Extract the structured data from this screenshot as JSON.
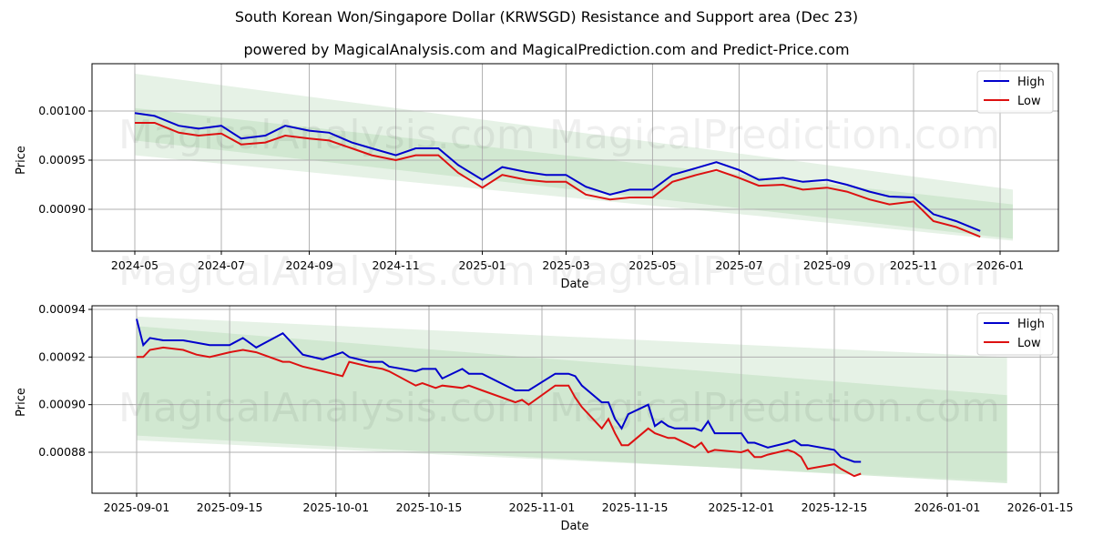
{
  "header": {
    "title": "South Korean Won/Singapore Dollar (KRWSGD) Resistance and Support area (Dec 23)",
    "subtitle": "powered by MagicalAnalysis.com and MagicalPrediction.com and Predict-Price.com"
  },
  "watermarks": [
    "MagicalAnalysis.com",
    "MagicalPrediction.com"
  ],
  "colors": {
    "high": "#0000cc",
    "low": "#dd1111",
    "band_outer": "#e3f1e3",
    "band_inner": "#c9e4c9",
    "grid": "#b0b0b0"
  },
  "chart_data": [
    {
      "type": "line",
      "title": "KRWSGD High/Low - long range",
      "xlabel": "Date",
      "ylabel": "Price",
      "x_ticks": [
        "2024-05",
        "2024-07",
        "2024-09",
        "2024-11",
        "2025-01",
        "2025-03",
        "2025-05",
        "2025-07",
        "2025-09",
        "2025-11",
        "2026-01"
      ],
      "y_ticks": [
        "0.00090",
        "0.00095",
        "0.00100"
      ],
      "ylim": [
        0.000868,
        0.001045
      ],
      "grid": true,
      "legend": {
        "position": "upper right",
        "entries": [
          "High",
          "Low"
        ]
      },
      "x": [
        "2024-05-01",
        "2024-05-15",
        "2024-06-01",
        "2024-06-15",
        "2024-07-01",
        "2024-07-15",
        "2024-08-01",
        "2024-08-15",
        "2024-09-01",
        "2024-09-15",
        "2024-10-01",
        "2024-10-15",
        "2024-11-01",
        "2024-11-15",
        "2024-12-01",
        "2024-12-15",
        "2025-01-01",
        "2025-01-15",
        "2025-02-01",
        "2025-02-15",
        "2025-03-01",
        "2025-03-15",
        "2025-04-01",
        "2025-04-15",
        "2025-05-01",
        "2025-05-15",
        "2025-06-01",
        "2025-06-15",
        "2025-07-01",
        "2025-07-15",
        "2025-08-01",
        "2025-08-15",
        "2025-09-01",
        "2025-09-15",
        "2025-10-01",
        "2025-10-15",
        "2025-11-01",
        "2025-11-15",
        "2025-12-01",
        "2025-12-18"
      ],
      "series": [
        {
          "name": "High",
          "color": "#0000cc",
          "values": [
            0.000998,
            0.000995,
            0.000985,
            0.000982,
            0.000985,
            0.000972,
            0.000975,
            0.000985,
            0.00098,
            0.000978,
            0.000968,
            0.000962,
            0.000955,
            0.000962,
            0.000962,
            0.000945,
            0.00093,
            0.000943,
            0.000938,
            0.000935,
            0.000935,
            0.000923,
            0.000915,
            0.00092,
            0.00092,
            0.000935,
            0.000942,
            0.000948,
            0.00094,
            0.00093,
            0.000932,
            0.000928,
            0.00093,
            0.000925,
            0.000918,
            0.000913,
            0.000912,
            0.000895,
            0.000888,
            0.000878
          ]
        },
        {
          "name": "Low",
          "color": "#dd1111",
          "values": [
            0.000988,
            0.000988,
            0.000978,
            0.000975,
            0.000977,
            0.000966,
            0.000968,
            0.000975,
            0.000972,
            0.00097,
            0.000962,
            0.000955,
            0.00095,
            0.000955,
            0.000955,
            0.000937,
            0.000922,
            0.000935,
            0.00093,
            0.000928,
            0.000928,
            0.000915,
            0.00091,
            0.000912,
            0.000912,
            0.000928,
            0.000935,
            0.00094,
            0.000932,
            0.000924,
            0.000925,
            0.00092,
            0.000922,
            0.000918,
            0.00091,
            0.000905,
            0.000908,
            0.000888,
            0.000882,
            0.000872
          ]
        }
      ],
      "bands": [
        {
          "name": "outer",
          "x_start": "2024-05-01",
          "x_end": "2026-01-10",
          "upper": [
            0.001038,
            0.00092
          ],
          "lower": [
            0.000955,
            0.000868
          ]
        },
        {
          "name": "inner",
          "x_start": "2024-05-01",
          "x_end": "2026-01-10",
          "upper": [
            0.001003,
            0.000905
          ],
          "lower": [
            0.00097,
            0.00087
          ]
        }
      ]
    },
    {
      "type": "line",
      "title": "KRWSGD High/Low - recent",
      "xlabel": "Date",
      "ylabel": "Price",
      "x_ticks": [
        "2025-09-01",
        "2025-09-15",
        "2025-10-01",
        "2025-10-15",
        "2025-11-01",
        "2025-11-15",
        "2025-12-01",
        "2025-12-15",
        "2026-01-01",
        "2026-01-15"
      ],
      "y_ticks": [
        "0.00088",
        "0.00090",
        "0.00092",
        "0.00094"
      ],
      "ylim": [
        0.000864,
        0.000941
      ],
      "grid": true,
      "legend": {
        "position": "upper right",
        "entries": [
          "High",
          "Low"
        ]
      },
      "x": [
        "2025-09-01",
        "2025-09-02",
        "2025-09-03",
        "2025-09-05",
        "2025-09-08",
        "2025-09-10",
        "2025-09-12",
        "2025-09-15",
        "2025-09-17",
        "2025-09-19",
        "2025-09-23",
        "2025-09-24",
        "2025-09-26",
        "2025-09-29",
        "2025-10-02",
        "2025-10-03",
        "2025-10-06",
        "2025-10-08",
        "2025-10-09",
        "2025-10-13",
        "2025-10-14",
        "2025-10-16",
        "2025-10-17",
        "2025-10-20",
        "2025-10-21",
        "2025-10-23",
        "2025-10-28",
        "2025-10-29",
        "2025-10-30",
        "2025-11-03",
        "2025-11-04",
        "2025-11-05",
        "2025-11-06",
        "2025-11-07",
        "2025-11-10",
        "2025-11-11",
        "2025-11-12",
        "2025-11-13",
        "2025-11-14",
        "2025-11-17",
        "2025-11-18",
        "2025-11-19",
        "2025-11-20",
        "2025-11-21",
        "2025-11-24",
        "2025-11-25",
        "2025-11-26",
        "2025-11-27",
        "2025-12-01",
        "2025-12-02",
        "2025-12-03",
        "2025-12-04",
        "2025-12-05",
        "2025-12-08",
        "2025-12-09",
        "2025-12-10",
        "2025-12-11",
        "2025-12-15",
        "2025-12-16",
        "2025-12-18",
        "2025-12-19"
      ],
      "series": [
        {
          "name": "High",
          "color": "#0000cc",
          "values": [
            0.000936,
            0.000925,
            0.000928,
            0.000927,
            0.000927,
            0.000926,
            0.000925,
            0.000925,
            0.000928,
            0.000924,
            0.00093,
            0.000927,
            0.000921,
            0.000919,
            0.000922,
            0.00092,
            0.000918,
            0.000918,
            0.000916,
            0.000914,
            0.000915,
            0.000915,
            0.000911,
            0.000915,
            0.000913,
            0.000913,
            0.000906,
            0.000906,
            0.000906,
            0.000913,
            0.000913,
            0.000913,
            0.000912,
            0.000908,
            0.000901,
            0.000901,
            0.000894,
            0.00089,
            0.000896,
            0.0009,
            0.000891,
            0.000893,
            0.000891,
            0.00089,
            0.00089,
            0.000889,
            0.000893,
            0.000888,
            0.000888,
            0.000884,
            0.000884,
            0.000883,
            0.000882,
            0.000884,
            0.000885,
            0.000883,
            0.000883,
            0.000881,
            0.000878,
            0.000876,
            0.000876
          ]
        },
        {
          "name": "Low",
          "color": "#dd1111",
          "values": [
            0.00092,
            0.00092,
            0.000923,
            0.000924,
            0.000923,
            0.000921,
            0.00092,
            0.000922,
            0.000923,
            0.000922,
            0.000918,
            0.000918,
            0.000916,
            0.000914,
            0.000912,
            0.000918,
            0.000916,
            0.000915,
            0.000914,
            0.000908,
            0.000909,
            0.000907,
            0.000908,
            0.000907,
            0.000908,
            0.000906,
            0.000901,
            0.000902,
            0.0009,
            0.000908,
            0.000908,
            0.000908,
            0.000903,
            0.000899,
            0.00089,
            0.000894,
            0.000888,
            0.000883,
            0.000883,
            0.00089,
            0.000888,
            0.000887,
            0.000886,
            0.000886,
            0.000882,
            0.000884,
            0.00088,
            0.000881,
            0.00088,
            0.000881,
            0.000878,
            0.000878,
            0.000879,
            0.000881,
            0.00088,
            0.000878,
            0.000873,
            0.000875,
            0.000873,
            0.00087,
            0.000871
          ]
        }
      ],
      "bands": [
        {
          "name": "outer",
          "x_start": "2025-09-01",
          "x_end": "2026-01-10",
          "upper": [
            0.000937,
            0.00092
          ],
          "lower": [
            0.000885,
            0.000868
          ]
        },
        {
          "name": "inner",
          "x_start": "2025-09-01",
          "x_end": "2026-01-10",
          "upper": [
            0.000933,
            0.000904
          ],
          "lower": [
            0.000887,
            0.000867
          ]
        }
      ]
    }
  ]
}
